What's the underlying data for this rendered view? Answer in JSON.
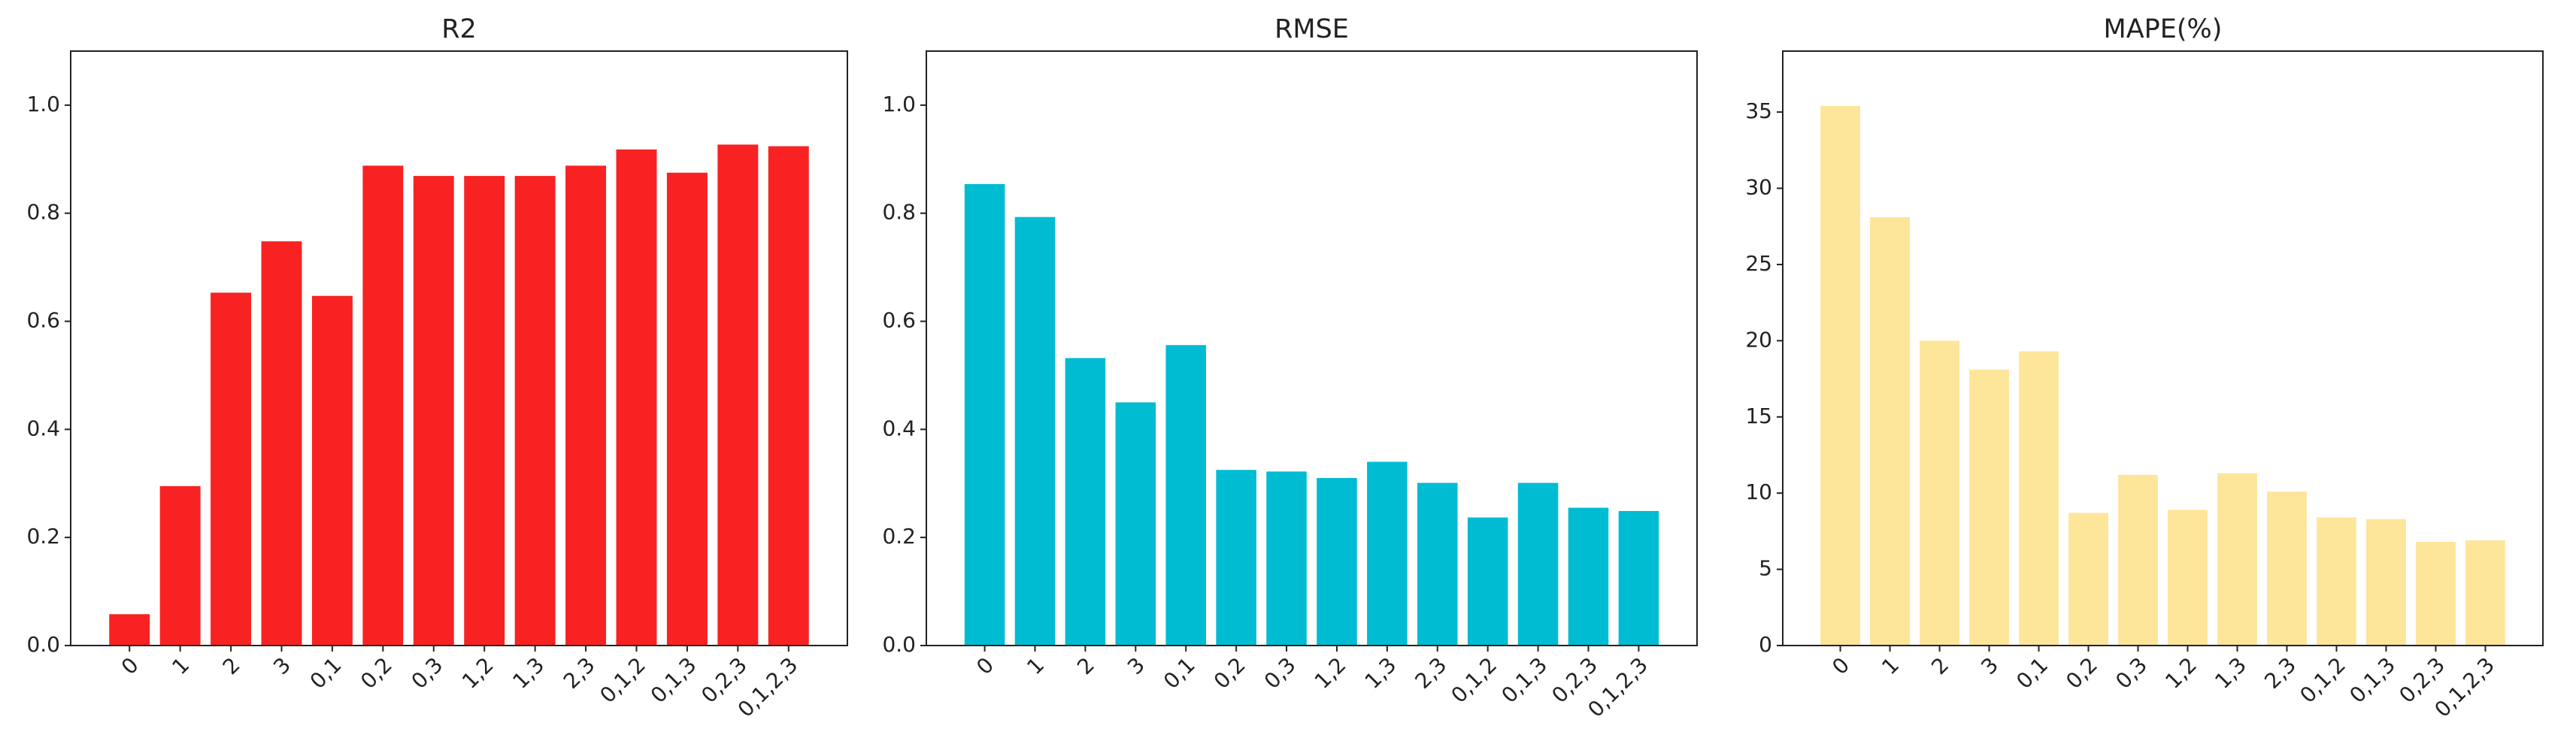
{
  "chart_data": [
    {
      "type": "bar",
      "title": "R2",
      "categories": [
        "0",
        "1",
        "2",
        "3",
        "0,1",
        "0,2",
        "0,3",
        "1,2",
        "1,3",
        "2,3",
        "0,1,2",
        "0,1,3",
        "0,2,3",
        "0,1,2,3"
      ],
      "values": [
        0.058,
        0.295,
        0.653,
        0.748,
        0.647,
        0.888,
        0.869,
        0.869,
        0.869,
        0.888,
        0.918,
        0.875,
        0.927,
        0.924
      ],
      "color": "#f82222",
      "ylim": [
        0,
        1.1
      ],
      "yticks": [
        {
          "value": 0,
          "label": "0.0"
        },
        0.2,
        0.4,
        0.6,
        0.8,
        {
          "value": 1,
          "label": "1.0"
        }
      ]
    },
    {
      "type": "bar",
      "title": "RMSE",
      "categories": [
        "0",
        "1",
        "2",
        "3",
        "0,1",
        "0,2",
        "0,3",
        "1,2",
        "1,3",
        "2,3",
        "0,1,2",
        "0,1,3",
        "0,2,3",
        "0,1,2,3"
      ],
      "values": [
        0.854,
        0.793,
        0.532,
        0.45,
        0.556,
        0.325,
        0.322,
        0.31,
        0.34,
        0.301,
        0.237,
        0.301,
        0.255,
        0.249
      ],
      "color": "#00bcd2",
      "ylim": [
        0,
        1.1
      ],
      "yticks": [
        {
          "value": 0,
          "label": "0.0"
        },
        0.2,
        0.4,
        0.6,
        0.8,
        {
          "value": 1,
          "label": "1.0"
        }
      ]
    },
    {
      "type": "bar",
      "title": "MAPE(%)",
      "categories": [
        "0",
        "1",
        "2",
        "3",
        "0,1",
        "0,2",
        "0,3",
        "1,2",
        "1,3",
        "2,3",
        "0,1,2",
        "0,1,3",
        "0,2,3",
        "0,1,2,3"
      ],
      "values": [
        35.4,
        28.1,
        20.0,
        18.1,
        19.3,
        8.7,
        11.2,
        8.9,
        11.3,
        10.1,
        8.4,
        8.3,
        6.8,
        6.9
      ],
      "color": "#fde59a",
      "ylim": [
        0,
        39
      ],
      "yticks": [
        0,
        5,
        10,
        15,
        20,
        25,
        30,
        35
      ]
    }
  ]
}
